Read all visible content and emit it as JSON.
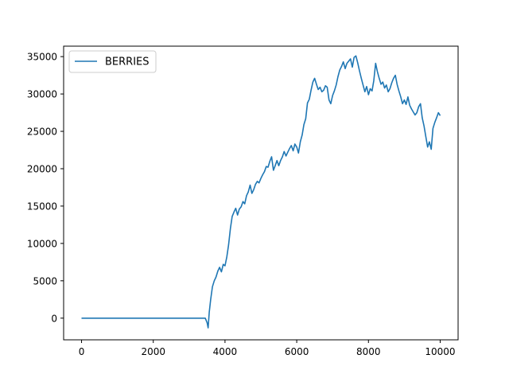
{
  "chart_data": {
    "type": "line",
    "title": "",
    "xlabel": "",
    "ylabel": "",
    "xlim": [
      -500,
      10500
    ],
    "ylim": [
      -2900,
      36400
    ],
    "x_ticks": [
      0,
      2000,
      4000,
      6000,
      8000,
      10000
    ],
    "y_ticks": [
      0,
      5000,
      10000,
      15000,
      20000,
      25000,
      30000,
      35000
    ],
    "grid": false,
    "legend": {
      "position": "top-left",
      "entries": [
        "BERRIES"
      ]
    },
    "series": [
      {
        "name": "BERRIES",
        "color": "#1f77b4",
        "points": [
          [
            0,
            0
          ],
          [
            500,
            0
          ],
          [
            1000,
            0
          ],
          [
            1500,
            0
          ],
          [
            2000,
            0
          ],
          [
            2500,
            0
          ],
          [
            3000,
            0
          ],
          [
            3450,
            0
          ],
          [
            3500,
            -600
          ],
          [
            3530,
            -1300
          ],
          [
            3560,
            800
          ],
          [
            3600,
            2500
          ],
          [
            3650,
            4200
          ],
          [
            3700,
            5000
          ],
          [
            3750,
            5500
          ],
          [
            3800,
            6300
          ],
          [
            3850,
            6800
          ],
          [
            3900,
            6200
          ],
          [
            3950,
            7200
          ],
          [
            4000,
            7000
          ],
          [
            4050,
            8200
          ],
          [
            4100,
            9800
          ],
          [
            4150,
            12000
          ],
          [
            4200,
            13600
          ],
          [
            4250,
            14200
          ],
          [
            4300,
            14700
          ],
          [
            4350,
            13800
          ],
          [
            4400,
            14600
          ],
          [
            4450,
            14900
          ],
          [
            4500,
            15600
          ],
          [
            4550,
            15300
          ],
          [
            4600,
            16400
          ],
          [
            4650,
            16900
          ],
          [
            4700,
            17800
          ],
          [
            4750,
            16700
          ],
          [
            4800,
            17200
          ],
          [
            4850,
            17900
          ],
          [
            4900,
            18300
          ],
          [
            4950,
            18100
          ],
          [
            5000,
            18700
          ],
          [
            5050,
            19200
          ],
          [
            5100,
            19600
          ],
          [
            5150,
            20300
          ],
          [
            5200,
            20200
          ],
          [
            5250,
            21000
          ],
          [
            5300,
            21600
          ],
          [
            5350,
            19800
          ],
          [
            5400,
            20400
          ],
          [
            5450,
            21100
          ],
          [
            5500,
            20400
          ],
          [
            5550,
            21100
          ],
          [
            5600,
            21600
          ],
          [
            5650,
            22300
          ],
          [
            5700,
            21700
          ],
          [
            5750,
            22200
          ],
          [
            5800,
            22700
          ],
          [
            5850,
            23100
          ],
          [
            5900,
            22400
          ],
          [
            5950,
            23300
          ],
          [
            6000,
            22900
          ],
          [
            6050,
            22100
          ],
          [
            6100,
            23600
          ],
          [
            6150,
            24500
          ],
          [
            6200,
            25900
          ],
          [
            6250,
            26700
          ],
          [
            6300,
            28800
          ],
          [
            6350,
            29300
          ],
          [
            6400,
            30500
          ],
          [
            6450,
            31600
          ],
          [
            6500,
            32100
          ],
          [
            6550,
            31300
          ],
          [
            6600,
            30600
          ],
          [
            6650,
            30900
          ],
          [
            6700,
            30300
          ],
          [
            6750,
            30500
          ],
          [
            6800,
            31100
          ],
          [
            6850,
            30900
          ],
          [
            6900,
            29200
          ],
          [
            6950,
            28700
          ],
          [
            7000,
            29800
          ],
          [
            7050,
            30400
          ],
          [
            7100,
            31200
          ],
          [
            7150,
            32300
          ],
          [
            7200,
            33200
          ],
          [
            7250,
            33700
          ],
          [
            7300,
            34300
          ],
          [
            7350,
            33400
          ],
          [
            7400,
            34100
          ],
          [
            7450,
            34400
          ],
          [
            7500,
            34700
          ],
          [
            7550,
            33600
          ],
          [
            7600,
            34900
          ],
          [
            7650,
            35100
          ],
          [
            7700,
            34200
          ],
          [
            7750,
            33100
          ],
          [
            7800,
            32100
          ],
          [
            7850,
            31200
          ],
          [
            7900,
            30300
          ],
          [
            7950,
            31000
          ],
          [
            8000,
            29900
          ],
          [
            8050,
            30700
          ],
          [
            8100,
            30400
          ],
          [
            8150,
            31800
          ],
          [
            8200,
            34100
          ],
          [
            8250,
            33000
          ],
          [
            8300,
            32100
          ],
          [
            8350,
            31300
          ],
          [
            8400,
            31600
          ],
          [
            8450,
            30800
          ],
          [
            8500,
            31200
          ],
          [
            8550,
            30300
          ],
          [
            8600,
            30700
          ],
          [
            8650,
            31500
          ],
          [
            8700,
            32100
          ],
          [
            8750,
            32500
          ],
          [
            8800,
            31300
          ],
          [
            8850,
            30400
          ],
          [
            8900,
            29600
          ],
          [
            8950,
            28700
          ],
          [
            9000,
            29200
          ],
          [
            9050,
            28600
          ],
          [
            9100,
            29600
          ],
          [
            9150,
            28500
          ],
          [
            9200,
            28000
          ],
          [
            9250,
            27600
          ],
          [
            9300,
            27200
          ],
          [
            9350,
            27500
          ],
          [
            9400,
            28300
          ],
          [
            9450,
            28700
          ],
          [
            9500,
            26800
          ],
          [
            9550,
            25700
          ],
          [
            9600,
            24300
          ],
          [
            9650,
            22900
          ],
          [
            9700,
            23600
          ],
          [
            9750,
            22600
          ],
          [
            9800,
            25400
          ],
          [
            9850,
            26200
          ],
          [
            9900,
            26800
          ],
          [
            9950,
            27500
          ],
          [
            10000,
            27100
          ]
        ]
      }
    ]
  }
}
